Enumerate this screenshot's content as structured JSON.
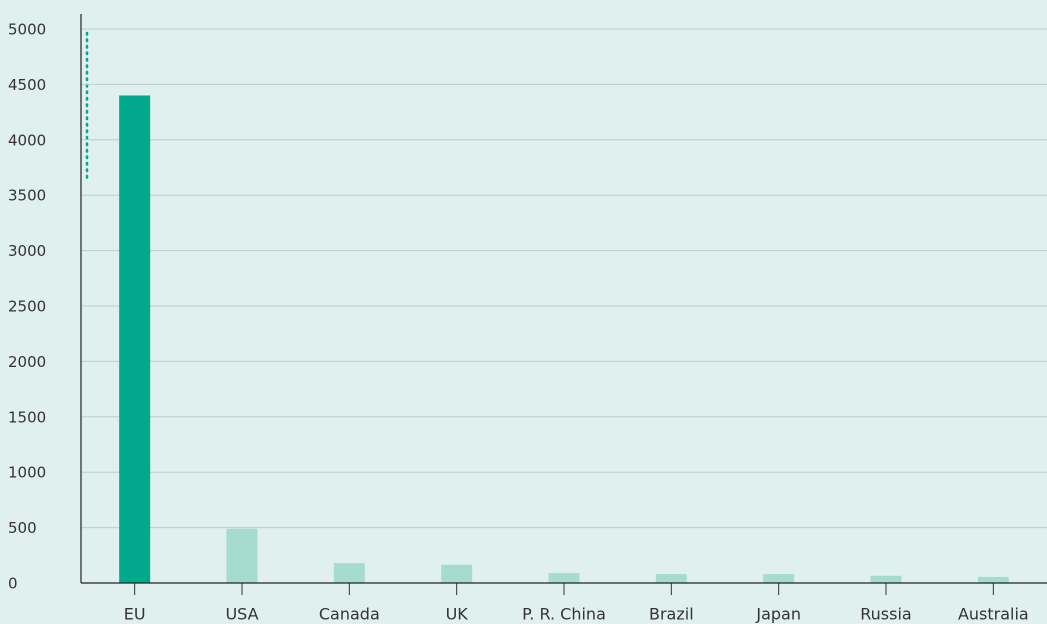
{
  "chart_data": {
    "type": "bar",
    "categories": [
      "EU",
      "USA",
      "Canada",
      "UK",
      "P. R. China",
      "Brazil",
      "Japan",
      "Russia",
      "Australia"
    ],
    "values": [
      4400,
      490,
      180,
      165,
      90,
      80,
      80,
      65,
      55
    ],
    "colors": [
      "#00a88c",
      "#a6dcd0",
      "#a6dcd0",
      "#a6dcd0",
      "#a6dcd0",
      "#a6dcd0",
      "#a6dcd0",
      "#a6dcd0",
      "#a6dcd0"
    ],
    "ylim": [
      0,
      5000
    ],
    "yticks": [
      0,
      500,
      1000,
      1500,
      2000,
      2500,
      3000,
      3500,
      4000,
      4500,
      5000
    ],
    "grid": true
  }
}
